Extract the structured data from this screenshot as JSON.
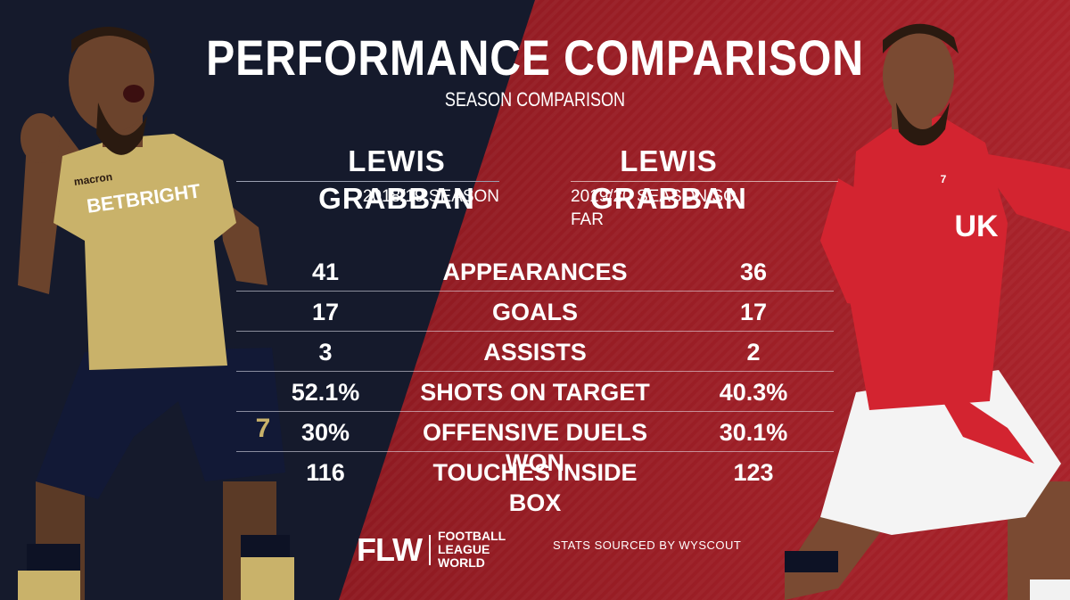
{
  "header": {
    "title": "PERFORMANCE COMPARISON",
    "subtitle": "SEASON COMPARISON"
  },
  "players": {
    "left": {
      "name": "LEWIS GRABBAN",
      "season": "2018/19 SEASON"
    },
    "right": {
      "name": "LEWIS GRABBAN",
      "season": "2019/20 SEASON SO FAR"
    }
  },
  "stats": [
    {
      "left": "41",
      "label": "APPEARANCES",
      "right": "36"
    },
    {
      "left": "17",
      "label": "GOALS",
      "right": "17"
    },
    {
      "left": "3",
      "label": "ASSISTS",
      "right": "2"
    },
    {
      "left": "52.1%",
      "label": "SHOTS ON TARGET",
      "right": "40.3%"
    },
    {
      "left": "30%",
      "label": "OFFENSIVE DUELS WON",
      "right": "30.1%"
    },
    {
      "left": "116",
      "label": "TOUCHES INSIDE BOX",
      "right": "123"
    }
  ],
  "footer": {
    "logo_mark": "FLW",
    "logo_text_1": "FOOTBALL",
    "logo_text_2": "LEAGUE WORLD",
    "source": "STATS SOURCED BY WYSCOUT"
  },
  "shirts": {
    "left_sponsor": "BETBRIGHT",
    "left_brand": "macron",
    "left_number": "7",
    "right_sponsor": "UK",
    "right_number": "7"
  },
  "colors": {
    "navy": "#151a2c",
    "red": "#9e1f26",
    "gold": "#c9b26a",
    "white": "#ffffff"
  }
}
